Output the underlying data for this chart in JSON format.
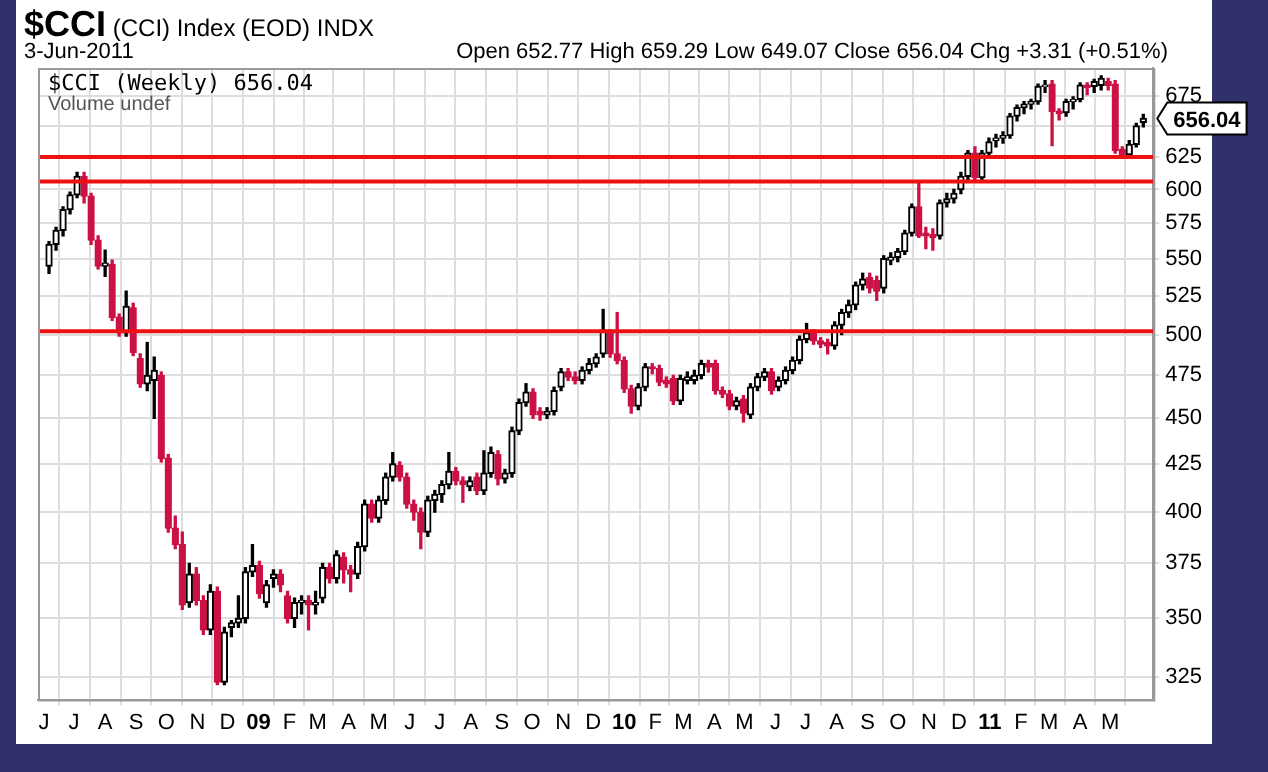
{
  "chart_data": {
    "type": "candlestick",
    "title": "$CCI",
    "subtitle": "(CCI) Index (EOD)",
    "annotations": [
      "3-Jun-2011",
      "INDX",
      "Open 652.77  High 659.29  Low 649.07  Close 656.04  Chg +3.31 (+0.51%)",
      "$CCI (Weekly) 656.04",
      "Volume undef",
      {
        "text": "656.04",
        "x": "2011-06-03",
        "y": 656.04
      }
    ],
    "x": [
      "2008-06-06",
      "2008-06-13",
      "2008-06-20",
      "2008-06-27",
      "2008-07-04",
      "2008-07-11",
      "2008-07-18",
      "2008-07-25",
      "2008-08-01",
      "2008-08-08",
      "2008-08-15",
      "2008-08-22",
      "2008-08-29",
      "2008-09-05",
      "2008-09-12",
      "2008-09-19",
      "2008-09-26",
      "2008-10-03",
      "2008-10-10",
      "2008-10-17",
      "2008-10-24",
      "2008-10-31",
      "2008-11-07",
      "2008-11-14",
      "2008-11-21",
      "2008-11-28",
      "2008-12-05",
      "2008-12-12",
      "2008-12-19",
      "2008-12-26",
      "2009-01-02",
      "2009-01-09",
      "2009-01-16",
      "2009-01-23",
      "2009-01-30",
      "2009-02-06",
      "2009-02-13",
      "2009-02-20",
      "2009-02-27",
      "2009-03-06",
      "2009-03-13",
      "2009-03-20",
      "2009-03-27",
      "2009-04-03",
      "2009-04-10",
      "2009-04-17",
      "2009-04-24",
      "2009-05-01",
      "2009-05-08",
      "2009-05-15",
      "2009-05-22",
      "2009-05-29",
      "2009-06-05",
      "2009-06-12",
      "2009-06-19",
      "2009-06-26",
      "2009-07-03",
      "2009-07-10",
      "2009-07-17",
      "2009-07-24",
      "2009-07-31",
      "2009-08-07",
      "2009-08-14",
      "2009-08-21",
      "2009-08-28",
      "2009-09-04",
      "2009-09-11",
      "2009-09-18",
      "2009-09-25",
      "2009-10-02",
      "2009-10-09",
      "2009-10-16",
      "2009-10-23",
      "2009-10-30",
      "2009-11-06",
      "2009-11-13",
      "2009-11-20",
      "2009-11-27",
      "2009-12-04",
      "2009-12-11",
      "2009-12-18",
      "2009-12-25",
      "2010-01-01",
      "2010-01-08",
      "2010-01-15",
      "2010-01-22",
      "2010-01-29",
      "2010-02-05",
      "2010-02-12",
      "2010-02-19",
      "2010-02-26",
      "2010-03-05",
      "2010-03-12",
      "2010-03-19",
      "2010-03-26",
      "2010-04-02",
      "2010-04-09",
      "2010-04-16",
      "2010-04-23",
      "2010-04-30",
      "2010-05-07",
      "2010-05-14",
      "2010-05-21",
      "2010-05-28",
      "2010-06-04",
      "2010-06-11",
      "2010-06-18",
      "2010-06-25",
      "2010-07-02",
      "2010-07-09",
      "2010-07-16",
      "2010-07-23",
      "2010-07-30",
      "2010-08-06",
      "2010-08-13",
      "2010-08-20",
      "2010-08-27",
      "2010-09-03",
      "2010-09-10",
      "2010-09-17",
      "2010-09-24",
      "2010-10-01",
      "2010-10-08",
      "2010-10-15",
      "2010-10-22",
      "2010-10-29",
      "2010-11-05",
      "2010-11-12",
      "2010-11-19",
      "2010-11-26",
      "2010-12-03",
      "2010-12-10",
      "2010-12-17",
      "2010-12-24",
      "2010-12-31",
      "2011-01-07",
      "2011-01-14",
      "2011-01-21",
      "2011-01-28",
      "2011-02-04",
      "2011-02-11",
      "2011-02-18",
      "2011-02-25",
      "2011-03-04",
      "2011-03-11",
      "2011-03-18",
      "2011-03-25",
      "2011-04-01",
      "2011-04-08",
      "2011-04-15",
      "2011-04-22",
      "2011-04-29",
      "2011-05-06",
      "2011-05-13",
      "2011-05-20",
      "2011-05-27",
      "2011-06-03"
    ],
    "ohlc": [
      [
        545,
        562,
        540,
        560
      ],
      [
        560,
        572,
        556,
        570
      ],
      [
        570,
        587,
        566,
        585
      ],
      [
        585,
        598,
        582,
        596
      ],
      [
        596,
        613,
        594,
        610
      ],
      [
        610,
        613,
        590,
        595
      ],
      [
        595,
        597,
        560,
        563
      ],
      [
        563,
        566,
        543,
        545
      ],
      [
        545,
        556,
        538,
        547
      ],
      [
        546,
        549,
        509,
        511
      ],
      [
        511,
        513,
        499,
        501
      ],
      [
        501,
        528,
        499,
        518
      ],
      [
        517,
        520,
        487,
        489
      ],
      [
        485,
        488,
        468,
        470
      ],
      [
        470,
        495,
        466,
        475
      ],
      [
        472,
        486,
        450,
        478
      ],
      [
        475,
        477,
        426,
        428
      ],
      [
        428,
        430,
        390,
        392
      ],
      [
        392,
        398,
        382,
        384
      ],
      [
        384,
        390,
        354,
        356
      ],
      [
        357,
        375,
        355,
        370
      ],
      [
        370,
        373,
        356,
        358
      ],
      [
        358,
        360,
        343,
        345
      ],
      [
        345,
        365,
        343,
        362
      ],
      [
        362,
        364,
        322,
        323
      ],
      [
        323,
        346,
        322,
        344
      ],
      [
        346,
        349,
        342,
        348
      ],
      [
        348,
        360,
        346,
        350
      ],
      [
        350,
        373,
        348,
        371
      ],
      [
        371,
        384,
        369,
        374
      ],
      [
        374,
        376,
        359,
        361
      ],
      [
        357,
        367,
        355,
        365
      ],
      [
        368,
        372,
        364,
        370
      ],
      [
        370,
        372,
        362,
        365
      ],
      [
        360,
        362,
        348,
        350
      ],
      [
        350,
        359,
        346,
        357
      ],
      [
        357,
        360,
        352,
        358
      ],
      [
        358,
        360,
        345,
        356
      ],
      [
        356,
        362,
        352,
        357
      ],
      [
        359,
        375,
        357,
        373
      ],
      [
        373,
        375,
        366,
        368
      ],
      [
        368,
        381,
        366,
        379
      ],
      [
        378,
        380,
        366,
        372
      ],
      [
        372,
        374,
        362,
        370
      ],
      [
        370,
        385,
        368,
        383
      ],
      [
        383,
        406,
        381,
        404
      ],
      [
        404,
        406,
        395,
        397
      ],
      [
        397,
        408,
        395,
        406
      ],
      [
        406,
        420,
        404,
        418
      ],
      [
        418,
        431,
        416,
        425
      ],
      [
        424,
        426,
        416,
        418
      ],
      [
        418,
        420,
        402,
        404
      ],
      [
        404,
        406,
        396,
        400
      ],
      [
        400,
        402,
        382,
        390
      ],
      [
        390,
        408,
        388,
        406
      ],
      [
        406,
        411,
        400,
        409
      ],
      [
        409,
        416,
        405,
        414
      ],
      [
        414,
        431,
        412,
        421
      ],
      [
        421,
        423,
        414,
        416
      ],
      [
        416,
        418,
        405,
        414
      ],
      [
        413,
        418,
        411,
        416
      ],
      [
        418,
        420,
        409,
        411
      ],
      [
        411,
        432,
        409,
        420
      ],
      [
        420,
        434,
        418,
        431
      ],
      [
        430,
        432,
        414,
        417
      ],
      [
        417,
        422,
        415,
        420
      ],
      [
        420,
        445,
        418,
        443
      ],
      [
        443,
        461,
        441,
        459
      ],
      [
        459,
        470,
        457,
        465
      ],
      [
        465,
        467,
        450,
        452
      ],
      [
        454,
        456,
        449,
        452
      ],
      [
        452,
        456,
        450,
        454
      ],
      [
        454,
        468,
        452,
        466
      ],
      [
        468,
        479,
        466,
        477
      ],
      [
        477,
        479,
        472,
        474
      ],
      [
        474,
        477,
        470,
        472
      ],
      [
        472,
        480,
        470,
        478
      ],
      [
        478,
        485,
        476,
        482
      ],
      [
        482,
        488,
        480,
        486
      ],
      [
        488,
        516,
        486,
        503
      ],
      [
        501,
        503,
        486,
        488
      ],
      [
        488,
        514,
        482,
        484
      ],
      [
        484,
        486,
        465,
        467
      ],
      [
        467,
        469,
        453,
        457
      ],
      [
        457,
        470,
        455,
        468
      ],
      [
        468,
        482,
        466,
        480
      ],
      [
        480,
        482,
        476,
        479
      ],
      [
        479,
        481,
        469,
        471
      ],
      [
        472,
        474,
        468,
        470
      ],
      [
        473,
        475,
        458,
        460
      ],
      [
        460,
        475,
        458,
        473
      ],
      [
        472,
        477,
        470,
        474
      ],
      [
        472,
        478,
        470,
        475
      ],
      [
        475,
        484,
        473,
        482
      ],
      [
        482,
        484,
        477,
        480
      ],
      [
        482,
        484,
        464,
        466
      ],
      [
        466,
        468,
        462,
        464
      ],
      [
        464,
        466,
        455,
        457
      ],
      [
        457,
        462,
        455,
        460
      ],
      [
        461,
        463,
        448,
        453
      ],
      [
        452,
        470,
        450,
        468
      ],
      [
        468,
        476,
        466,
        474
      ],
      [
        474,
        479,
        472,
        477
      ],
      [
        477,
        479,
        464,
        466
      ],
      [
        468,
        474,
        466,
        472
      ],
      [
        472,
        480,
        470,
        478
      ],
      [
        478,
        486,
        476,
        484
      ],
      [
        484,
        499,
        482,
        497
      ],
      [
        497,
        507,
        495,
        501
      ],
      [
        501,
        503,
        494,
        496
      ],
      [
        496,
        498,
        492,
        494
      ],
      [
        495,
        497,
        488,
        493
      ],
      [
        493,
        508,
        491,
        506
      ],
      [
        506,
        516,
        500,
        514
      ],
      [
        514,
        522,
        511,
        519
      ],
      [
        519,
        534,
        516,
        532
      ],
      [
        532,
        540,
        529,
        536
      ],
      [
        537,
        540,
        527,
        530
      ],
      [
        535,
        538,
        522,
        528
      ],
      [
        530,
        552,
        527,
        550
      ],
      [
        549,
        554,
        546,
        551
      ],
      [
        551,
        557,
        548,
        555
      ],
      [
        555,
        570,
        553,
        568
      ],
      [
        568,
        589,
        566,
        587
      ],
      [
        587,
        606,
        565,
        566
      ],
      [
        568,
        572,
        557,
        566
      ],
      [
        567,
        571,
        556,
        565
      ],
      [
        566,
        592,
        564,
        590
      ],
      [
        590,
        597,
        587,
        593
      ],
      [
        593,
        600,
        590,
        597
      ],
      [
        600,
        613,
        597,
        610
      ],
      [
        610,
        630,
        607,
        628
      ],
      [
        628,
        633,
        606,
        609
      ],
      [
        609,
        630,
        606,
        628
      ],
      [
        628,
        640,
        624,
        637
      ],
      [
        638,
        643,
        633,
        640
      ],
      [
        640,
        645,
        636,
        642
      ],
      [
        642,
        660,
        640,
        658
      ],
      [
        658,
        667,
        654,
        665
      ],
      [
        665,
        670,
        660,
        668
      ],
      [
        668,
        672,
        664,
        670
      ],
      [
        670,
        685,
        668,
        683
      ],
      [
        683,
        688,
        678,
        684
      ],
      [
        685,
        688,
        634,
        662
      ],
      [
        662,
        664,
        655,
        660
      ],
      [
        661,
        672,
        658,
        670
      ],
      [
        670,
        674,
        664,
        672
      ],
      [
        672,
        686,
        670,
        684
      ],
      [
        684,
        686,
        676,
        682
      ],
      [
        683,
        689,
        678,
        687
      ],
      [
        684,
        692,
        680,
        690
      ],
      [
        687,
        690,
        680,
        684
      ],
      [
        685,
        688,
        628,
        630
      ],
      [
        631,
        633,
        625,
        627
      ],
      [
        627,
        638,
        625,
        635
      ],
      [
        635,
        652,
        633,
        650
      ],
      [
        652.77,
        659.29,
        649.07,
        656.04
      ]
    ],
    "colors": [
      "#000000",
      "#000000",
      "#000000",
      "#000000",
      "#000000",
      "#cc1144",
      "#cc1144",
      "#cc1144",
      "#000000",
      "#cc1144",
      "#cc1144",
      "#000000",
      "#cc1144",
      "#cc1144",
      "#000000",
      "#000000",
      "#cc1144",
      "#cc1144",
      "#cc1144",
      "#cc1144",
      "#000000",
      "#cc1144",
      "#cc1144",
      "#000000",
      "#cc1144",
      "#000000",
      "#000000",
      "#000000",
      "#000000",
      "#000000",
      "#cc1144",
      "#000000",
      "#000000",
      "#cc1144",
      "#cc1144",
      "#000000",
      "#000000",
      "#cc1144",
      "#000000",
      "#000000",
      "#cc1144",
      "#000000",
      "#cc1144",
      "#cc1144",
      "#000000",
      "#000000",
      "#cc1144",
      "#000000",
      "#000000",
      "#000000",
      "#cc1144",
      "#cc1144",
      "#cc1144",
      "#cc1144",
      "#000000",
      "#000000",
      "#000000",
      "#000000",
      "#cc1144",
      "#cc1144",
      "#000000",
      "#cc1144",
      "#000000",
      "#000000",
      "#cc1144",
      "#000000",
      "#000000",
      "#000000",
      "#000000",
      "#cc1144",
      "#cc1144",
      "#000000",
      "#000000",
      "#000000",
      "#cc1144",
      "#cc1144",
      "#000000",
      "#000000",
      "#000000",
      "#000000",
      "#cc1144",
      "#cc1144",
      "#cc1144",
      "#cc1144",
      "#000000",
      "#000000",
      "#cc1144",
      "#cc1144",
      "#cc1144",
      "#cc1144",
      "#000000",
      "#000000",
      "#000000",
      "#000000",
      "#cc1144",
      "#cc1144",
      "#cc1144",
      "#cc1144",
      "#000000",
      "#cc1144",
      "#000000",
      "#000000",
      "#000000",
      "#cc1144",
      "#000000",
      "#000000",
      "#000000",
      "#000000",
      "#000000",
      "#cc1144",
      "#cc1144",
      "#cc1144",
      "#000000",
      "#000000",
      "#000000",
      "#000000",
      "#000000",
      "#cc1144",
      "#cc1144",
      "#000000",
      "#000000",
      "#000000",
      "#000000",
      "#000000",
      "#cc1144",
      "#cc1144",
      "#cc1144",
      "#000000",
      "#000000",
      "#000000",
      "#000000",
      "#000000",
      "#cc1144",
      "#000000",
      "#000000",
      "#000000",
      "#000000",
      "#000000",
      "#000000",
      "#000000",
      "#000000",
      "#000000",
      "#000000",
      "#cc1144",
      "#cc1144",
      "#000000",
      "#000000",
      "#000000",
      "#cc1144",
      "#000000",
      "#000000",
      "#cc1144",
      "#cc1144",
      "#cc1144",
      "#000000",
      "#000000",
      "#000000"
    ],
    "xlim": [
      "2008-05-26",
      "2011-06-13"
    ],
    "xticks": [
      {
        "value": "2008-06-01",
        "label": "J"
      },
      {
        "value": "2008-07-01",
        "label": "J"
      },
      {
        "value": "2008-08-01",
        "label": "A"
      },
      {
        "value": "2008-09-01",
        "label": "S"
      },
      {
        "value": "2008-10-01",
        "label": "O"
      },
      {
        "value": "2008-11-01",
        "label": "N"
      },
      {
        "value": "2008-12-01",
        "label": "D"
      },
      {
        "value": "2009-01-01",
        "label": "09"
      },
      {
        "value": "2009-02-01",
        "label": "F"
      },
      {
        "value": "2009-03-01",
        "label": "M"
      },
      {
        "value": "2009-04-01",
        "label": "A"
      },
      {
        "value": "2009-05-01",
        "label": "M"
      },
      {
        "value": "2009-06-01",
        "label": "J"
      },
      {
        "value": "2009-07-01",
        "label": "J"
      },
      {
        "value": "2009-08-01",
        "label": "A"
      },
      {
        "value": "2009-09-01",
        "label": "S"
      },
      {
        "value": "2009-10-01",
        "label": "O"
      },
      {
        "value": "2009-11-01",
        "label": "N"
      },
      {
        "value": "2009-12-01",
        "label": "D"
      },
      {
        "value": "2010-01-01",
        "label": "10"
      },
      {
        "value": "2010-02-01",
        "label": "F"
      },
      {
        "value": "2010-03-01",
        "label": "M"
      },
      {
        "value": "2010-04-01",
        "label": "A"
      },
      {
        "value": "2010-05-01",
        "label": "M"
      },
      {
        "value": "2010-06-01",
        "label": "J"
      },
      {
        "value": "2010-07-01",
        "label": "J"
      },
      {
        "value": "2010-08-01",
        "label": "A"
      },
      {
        "value": "2010-09-01",
        "label": "S"
      },
      {
        "value": "2010-10-01",
        "label": "O"
      },
      {
        "value": "2010-11-01",
        "label": "N"
      },
      {
        "value": "2010-12-01",
        "label": "D"
      },
      {
        "value": "2011-01-01",
        "label": "11"
      },
      {
        "value": "2011-02-01",
        "label": "F"
      },
      {
        "value": "2011-03-01",
        "label": "M"
      },
      {
        "value": "2011-04-01",
        "label": "A"
      },
      {
        "value": "2011-05-01",
        "label": "M"
      }
    ],
    "ylim": [
      316,
      699
    ],
    "yticks": [
      325,
      350,
      375,
      400,
      425,
      450,
      475,
      500,
      525,
      550,
      575,
      600,
      625,
      {
        "value": 650,
        "label": null
      },
      675
    ],
    "log": "y",
    "grid": true,
    "ref_lines": [
      {
        "axis": "y",
        "value": 625,
        "color": "#ee1111"
      },
      {
        "axis": "y",
        "value": 606,
        "color": "#ee1111"
      },
      {
        "axis": "y",
        "value": 502,
        "color": "#ee1111"
      }
    ]
  }
}
